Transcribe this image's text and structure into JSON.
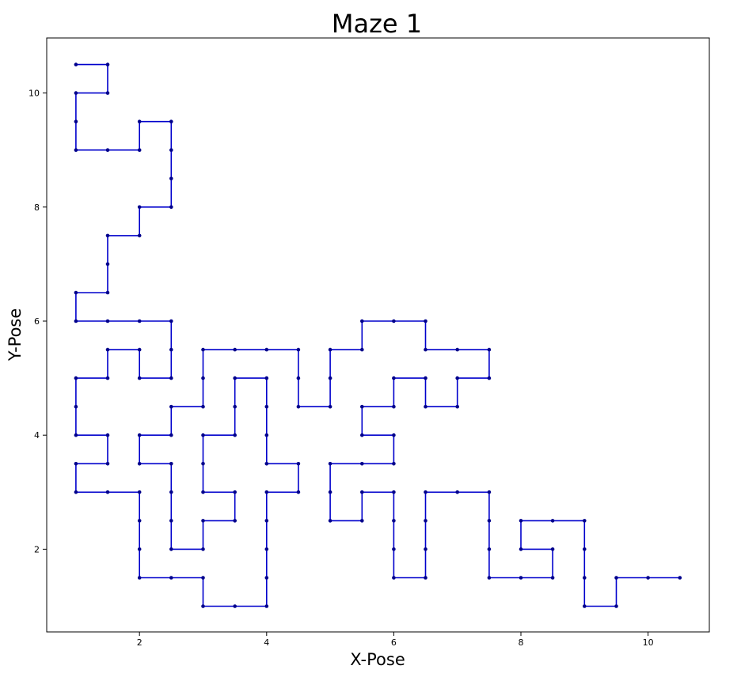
{
  "chart_data": {
    "type": "line",
    "title": "Maze 1",
    "xlabel": "X-Pose",
    "ylabel": "Y-Pose",
    "xlim": [
      0.5,
      11.0
    ],
    "ylim": [
      0.5,
      11.0
    ],
    "xticks": [
      2,
      4,
      6,
      8,
      10
    ],
    "yticks": [
      2,
      4,
      6,
      8,
      10
    ],
    "grid": false,
    "line_color": "#0000cc",
    "marker_color": "#00008b",
    "segments": [
      [
        [
          1,
          10.5
        ],
        [
          1.5,
          10.5
        ],
        [
          1.5,
          10
        ],
        [
          1,
          10
        ],
        [
          1,
          9
        ],
        [
          2,
          9
        ],
        [
          2,
          9.5
        ],
        [
          2.5,
          9.5
        ],
        [
          2.5,
          8
        ],
        [
          2,
          8
        ],
        [
          2,
          7.5
        ],
        [
          1.5,
          7.5
        ],
        [
          1.5,
          6.5
        ],
        [
          1,
          6.5
        ],
        [
          1,
          6
        ],
        [
          2.5,
          6
        ],
        [
          2.5,
          5
        ],
        [
          2,
          5
        ],
        [
          2,
          5.5
        ],
        [
          1.5,
          5.5
        ],
        [
          1.5,
          5
        ],
        [
          1,
          5
        ],
        [
          1,
          4
        ],
        [
          1.5,
          4
        ],
        [
          1.5,
          3.5
        ],
        [
          1,
          3.5
        ],
        [
          1,
          3
        ],
        [
          2,
          3
        ],
        [
          2,
          1.5
        ],
        [
          3,
          1.5
        ],
        [
          3,
          1
        ],
        [
          4,
          1
        ],
        [
          4,
          3
        ],
        [
          4.5,
          3
        ],
        [
          4.5,
          3.5
        ],
        [
          4,
          3.5
        ],
        [
          4,
          5
        ],
        [
          3.5,
          5
        ],
        [
          3.5,
          4
        ],
        [
          3,
          4
        ],
        [
          3,
          3
        ],
        [
          3.5,
          3
        ],
        [
          3.5,
          2.5
        ],
        [
          3,
          2.5
        ],
        [
          3,
          2
        ],
        [
          2.5,
          2
        ],
        [
          2.5,
          3.5
        ],
        [
          2,
          3.5
        ],
        [
          2,
          4
        ],
        [
          2.5,
          4
        ],
        [
          2.5,
          4.5
        ],
        [
          3,
          4.5
        ],
        [
          3,
          5.5
        ],
        [
          4.5,
          5.5
        ],
        [
          4.5,
          4.5
        ],
        [
          5,
          4.5
        ],
        [
          5,
          5.5
        ],
        [
          5.5,
          5.5
        ],
        [
          5.5,
          6
        ],
        [
          6.5,
          6
        ],
        [
          6.5,
          5.5
        ],
        [
          7.5,
          5.5
        ],
        [
          7.5,
          5
        ],
        [
          7,
          5
        ],
        [
          7,
          4.5
        ],
        [
          6.5,
          4.5
        ],
        [
          6.5,
          5
        ],
        [
          6,
          5
        ],
        [
          6,
          4.5
        ],
        [
          5.5,
          4.5
        ],
        [
          5.5,
          4
        ],
        [
          6,
          4
        ],
        [
          6,
          3.5
        ],
        [
          5,
          3.5
        ],
        [
          5,
          2.5
        ],
        [
          5.5,
          2.5
        ],
        [
          5.5,
          3
        ],
        [
          6,
          3
        ],
        [
          6,
          1.5
        ],
        [
          6.5,
          1.5
        ],
        [
          6.5,
          3
        ],
        [
          7.5,
          3
        ],
        [
          7.5,
          1.5
        ],
        [
          8.5,
          1.5
        ],
        [
          8.5,
          2
        ],
        [
          8,
          2
        ],
        [
          8,
          2.5
        ],
        [
          9,
          2.5
        ],
        [
          9,
          1
        ],
        [
          9.5,
          1
        ],
        [
          9.5,
          1.5
        ],
        [
          10.5,
          1.5
        ]
      ]
    ],
    "points": [
      [
        1,
        10.5
      ],
      [
        1.5,
        10.5
      ],
      [
        1.5,
        10
      ],
      [
        1,
        10
      ],
      [
        1,
        9.5
      ],
      [
        1,
        9
      ],
      [
        1.5,
        9
      ],
      [
        2,
        9
      ],
      [
        2,
        9.5
      ],
      [
        2.5,
        9.5
      ],
      [
        2.5,
        9
      ],
      [
        2.5,
        8.5
      ],
      [
        2.5,
        8
      ],
      [
        2,
        8
      ],
      [
        2,
        7.5
      ],
      [
        1.5,
        7.5
      ],
      [
        1.5,
        7
      ],
      [
        1.5,
        6.5
      ],
      [
        1,
        6.5
      ],
      [
        1,
        6
      ],
      [
        1.5,
        6
      ],
      [
        2,
        6
      ],
      [
        2.5,
        6
      ],
      [
        2.5,
        5.5
      ],
      [
        2.5,
        5
      ],
      [
        2,
        5
      ],
      [
        2,
        5.5
      ],
      [
        1.5,
        5.5
      ],
      [
        1.5,
        5
      ],
      [
        1,
        5
      ],
      [
        1,
        4.5
      ],
      [
        1,
        4
      ],
      [
        1.5,
        4
      ],
      [
        1.5,
        3.5
      ],
      [
        1,
        3.5
      ],
      [
        1,
        3
      ],
      [
        1.5,
        3
      ],
      [
        2,
        3
      ],
      [
        2,
        2.5
      ],
      [
        2,
        2
      ],
      [
        2,
        1.5
      ],
      [
        2.5,
        1.5
      ],
      [
        3,
        1.5
      ],
      [
        3,
        1
      ],
      [
        3.5,
        1
      ],
      [
        4,
        1
      ],
      [
        4,
        1.5
      ],
      [
        4,
        2
      ],
      [
        4,
        2.5
      ],
      [
        4,
        3
      ],
      [
        4.5,
        3
      ],
      [
        4.5,
        3.5
      ],
      [
        4,
        3.5
      ],
      [
        4,
        4
      ],
      [
        4,
        4.5
      ],
      [
        4,
        5
      ],
      [
        3.5,
        5
      ],
      [
        3.5,
        4.5
      ],
      [
        3.5,
        4
      ],
      [
        3,
        4
      ],
      [
        3,
        3.5
      ],
      [
        3,
        3
      ],
      [
        3.5,
        3
      ],
      [
        3.5,
        2.5
      ],
      [
        3,
        2.5
      ],
      [
        3,
        2
      ],
      [
        2.5,
        2
      ],
      [
        2.5,
        2.5
      ],
      [
        2.5,
        3
      ],
      [
        2.5,
        3.5
      ],
      [
        2,
        3.5
      ],
      [
        2,
        4
      ],
      [
        2.5,
        4
      ],
      [
        2.5,
        4.5
      ],
      [
        3,
        4.5
      ],
      [
        3,
        5
      ],
      [
        3,
        5.5
      ],
      [
        3.5,
        5.5
      ],
      [
        4,
        5.5
      ],
      [
        4.5,
        5.5
      ],
      [
        4.5,
        5
      ],
      [
        4.5,
        4.5
      ],
      [
        5,
        4.5
      ],
      [
        5,
        5
      ],
      [
        5,
        5.5
      ],
      [
        5.5,
        5.5
      ],
      [
        5.5,
        6
      ],
      [
        6,
        6
      ],
      [
        6.5,
        6
      ],
      [
        6.5,
        5.5
      ],
      [
        7,
        5.5
      ],
      [
        7.5,
        5.5
      ],
      [
        7.5,
        5
      ],
      [
        7,
        5
      ],
      [
        7,
        4.5
      ],
      [
        6.5,
        4.5
      ],
      [
        6.5,
        5
      ],
      [
        6,
        5
      ],
      [
        6,
        4.5
      ],
      [
        5.5,
        4.5
      ],
      [
        5.5,
        4
      ],
      [
        6,
        4
      ],
      [
        6,
        3.5
      ],
      [
        5.5,
        3.5
      ],
      [
        5,
        3.5
      ],
      [
        5,
        3
      ],
      [
        5,
        2.5
      ],
      [
        5.5,
        2.5
      ],
      [
        5.5,
        3
      ],
      [
        6,
        3
      ],
      [
        6,
        2.5
      ],
      [
        6,
        2
      ],
      [
        6,
        1.5
      ],
      [
        6.5,
        1.5
      ],
      [
        6.5,
        2
      ],
      [
        6.5,
        2.5
      ],
      [
        6.5,
        3
      ],
      [
        7,
        3
      ],
      [
        7.5,
        3
      ],
      [
        7.5,
        2.5
      ],
      [
        7.5,
        2
      ],
      [
        7.5,
        1.5
      ],
      [
        8,
        1.5
      ],
      [
        8.5,
        1.5
      ],
      [
        8.5,
        2
      ],
      [
        8,
        2
      ],
      [
        8,
        2.5
      ],
      [
        8.5,
        2.5
      ],
      [
        9,
        2.5
      ],
      [
        9,
        2
      ],
      [
        9,
        1.5
      ],
      [
        9,
        1
      ],
      [
        9.5,
        1
      ],
      [
        9.5,
        1.5
      ],
      [
        10,
        1.5
      ],
      [
        10.5,
        1.5
      ]
    ]
  }
}
